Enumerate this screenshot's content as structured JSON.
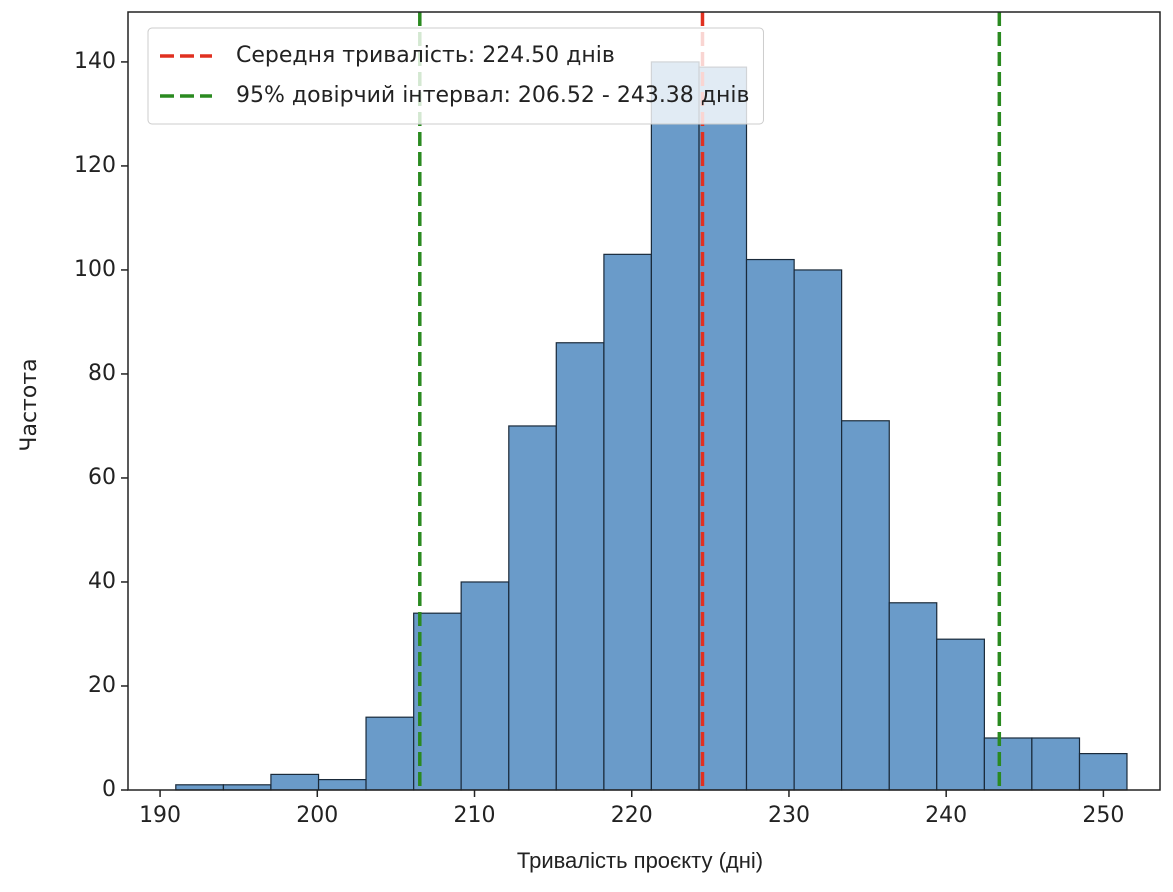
{
  "chart_data": {
    "type": "histogram",
    "xlabel": "Тривалість проєкту (дні)",
    "ylabel": "Частота",
    "bins": [
      191.0,
      194.03,
      197.05,
      200.08,
      203.1,
      206.13,
      209.15,
      212.18,
      215.2,
      218.23,
      221.25,
      224.28,
      227.3,
      230.33,
      233.35,
      236.38,
      239.4,
      242.43,
      245.45,
      248.48,
      251.5
    ],
    "values": [
      1,
      1,
      3,
      2,
      14,
      34,
      40,
      70,
      86,
      103,
      140,
      139,
      102,
      100,
      71,
      36,
      29,
      10,
      10,
      7
    ],
    "color": "#6a9bc9",
    "edgecolor": "#1a2a3a",
    "lines": [
      {
        "name": "Середня тривалість: 224.50 днів",
        "x": [
          224.5
        ],
        "color": "#e03020"
      },
      {
        "name": "95% довірчий інтервал: 206.52 - 243.38 днів",
        "x": [
          206.52,
          243.38
        ],
        "color": "#2a8a20"
      }
    ],
    "legend": "upper left",
    "xlim": [
      187.96,
      253.6
    ],
    "ylim": [
      0,
      149.6
    ],
    "xticks": [
      190,
      200,
      210,
      220,
      230,
      240,
      250
    ],
    "yticks": [
      0,
      20,
      40,
      60,
      80,
      100,
      120,
      140
    ]
  }
}
